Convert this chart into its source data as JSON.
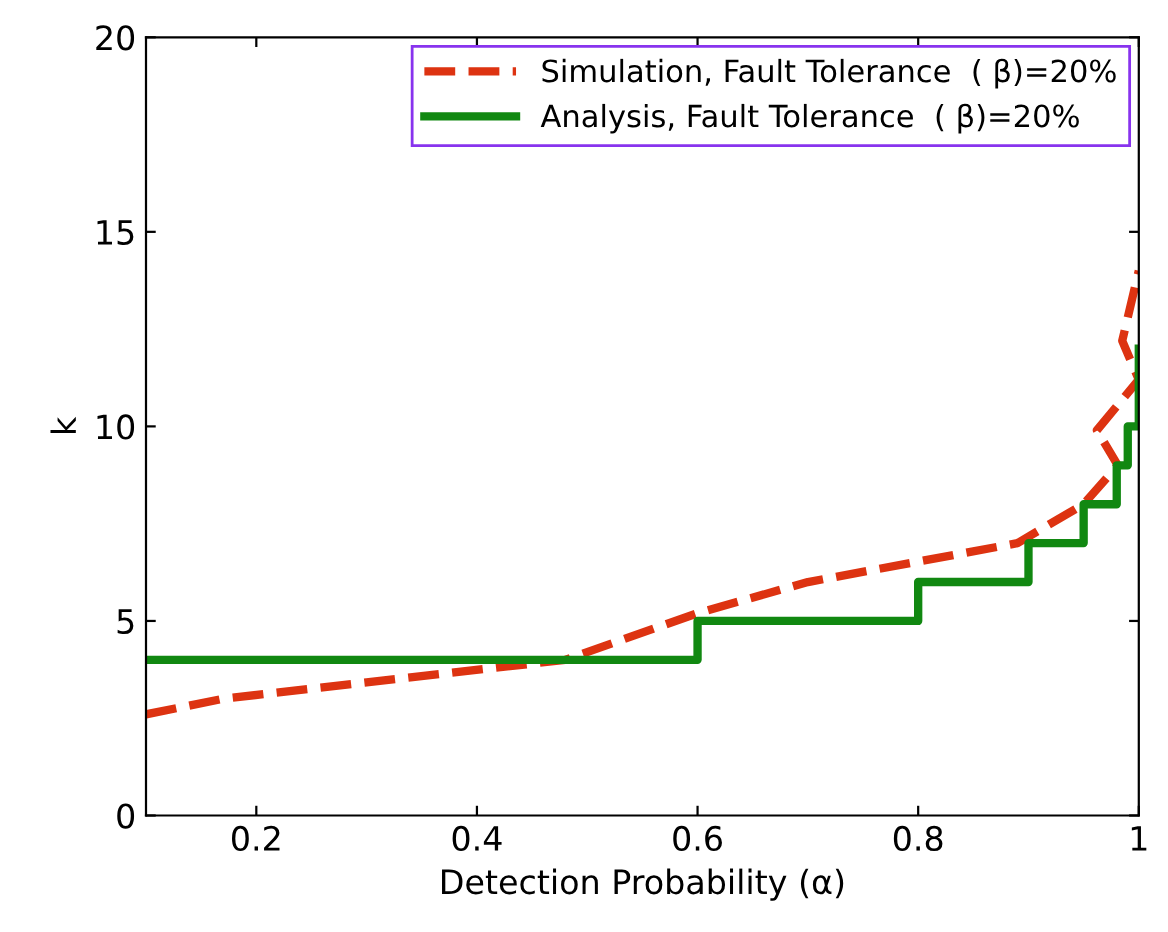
{
  "chart_data": {
    "type": "line",
    "xlabel": "Detection Probability (α)",
    "ylabel": "k",
    "xlim": [
      0.1,
      1.0
    ],
    "ylim": [
      0,
      20
    ],
    "xticks": [
      0.2,
      0.4,
      0.6,
      0.8,
      1
    ],
    "yticks": [
      0,
      5,
      10,
      15,
      20
    ],
    "grid": false,
    "legend": "top right",
    "series": [
      {
        "name": "Simulation, Fault Tolerance  ( β)=20%",
        "color": "#dd3311",
        "line_style": "dashed",
        "x": [
          0.1,
          0.17,
          0.48,
          0.6,
          0.7,
          0.89,
          0.95,
          0.981,
          0.962,
          1.0,
          0.985,
          1.0
        ],
        "values": [
          2.6,
          3.0,
          4.0,
          5.2,
          6.0,
          7.0,
          8.0,
          9.0,
          9.9,
          11.2,
          12.2,
          14.0
        ]
      },
      {
        "name": "Analysis, Fault Tolerance  ( β)=20%",
        "color": "#118811",
        "type": "step",
        "line_style": "solid",
        "x": [
          0.1,
          0.6,
          0.8,
          0.9,
          0.95,
          0.98,
          0.99,
          1.0
        ],
        "values": [
          4,
          5,
          6,
          7,
          8,
          9,
          10,
          12
        ]
      }
    ]
  }
}
